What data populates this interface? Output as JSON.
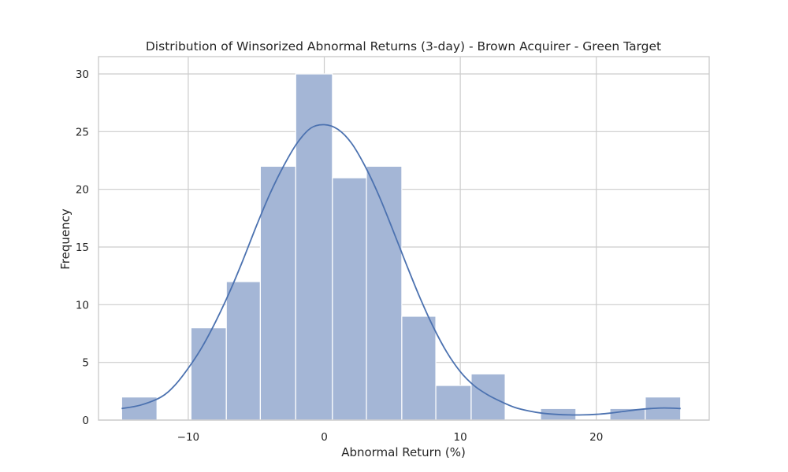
{
  "chart_data": {
    "type": "histogram",
    "title": "Distribution of Winsorized Abnormal Returns (3-day) - Brown Acquirer - Green Target",
    "xlabel": "Abnormal Return (%)",
    "ylabel": "Frequency",
    "xlim": [
      -16.6,
      28.3
    ],
    "ylim": [
      0,
      31.5
    ],
    "xticks": [
      -10,
      0,
      10,
      20
    ],
    "xtick_labels": [
      "−10",
      "0",
      "10",
      "20"
    ],
    "yticks": [
      0,
      5,
      10,
      15,
      20,
      25,
      30
    ],
    "ytick_labels": [
      "0",
      "5",
      "10",
      "15",
      "20",
      "25",
      "30"
    ],
    "grid": true,
    "bins": {
      "edges": [
        -14.9,
        -12.3,
        -9.8,
        -7.2,
        -4.7,
        -2.1,
        0.6,
        3.1,
        5.7,
        8.2,
        10.8,
        13.3,
        15.9,
        18.5,
        21.0,
        23.6,
        26.2
      ],
      "counts": [
        2,
        0,
        8,
        12,
        22,
        30,
        21,
        22,
        9,
        3,
        4,
        0,
        1,
        0,
        1,
        2
      ]
    },
    "kde_curve": {
      "x": [
        -14.9,
        -13.5,
        -12.0,
        -11.0,
        -10.0,
        -9.0,
        -8.0,
        -7.0,
        -6.0,
        -5.0,
        -4.0,
        -3.0,
        -2.0,
        -1.0,
        0.0,
        1.0,
        2.0,
        3.0,
        4.0,
        5.0,
        6.0,
        7.0,
        8.0,
        9.0,
        10.0,
        11.0,
        12.0,
        13.0,
        14.0,
        15.0,
        16.0,
        17.0,
        18.0,
        19.0,
        20.0,
        21.0,
        22.0,
        23.0,
        24.0,
        25.0,
        26.2
      ],
      "y": [
        1.0,
        1.3,
        2.0,
        3.0,
        4.5,
        6.3,
        8.5,
        11.0,
        13.8,
        16.8,
        19.6,
        22.0,
        24.0,
        25.3,
        25.6,
        25.2,
        24.0,
        22.0,
        19.5,
        16.6,
        13.6,
        10.7,
        8.1,
        5.9,
        4.2,
        3.0,
        2.2,
        1.6,
        1.1,
        0.8,
        0.6,
        0.5,
        0.45,
        0.45,
        0.5,
        0.6,
        0.75,
        0.9,
        1.0,
        1.05,
        1.0
      ]
    },
    "colors": {
      "bar": "#a4b6d6",
      "kde": "#4c72b0",
      "background": "#ffffff"
    }
  }
}
